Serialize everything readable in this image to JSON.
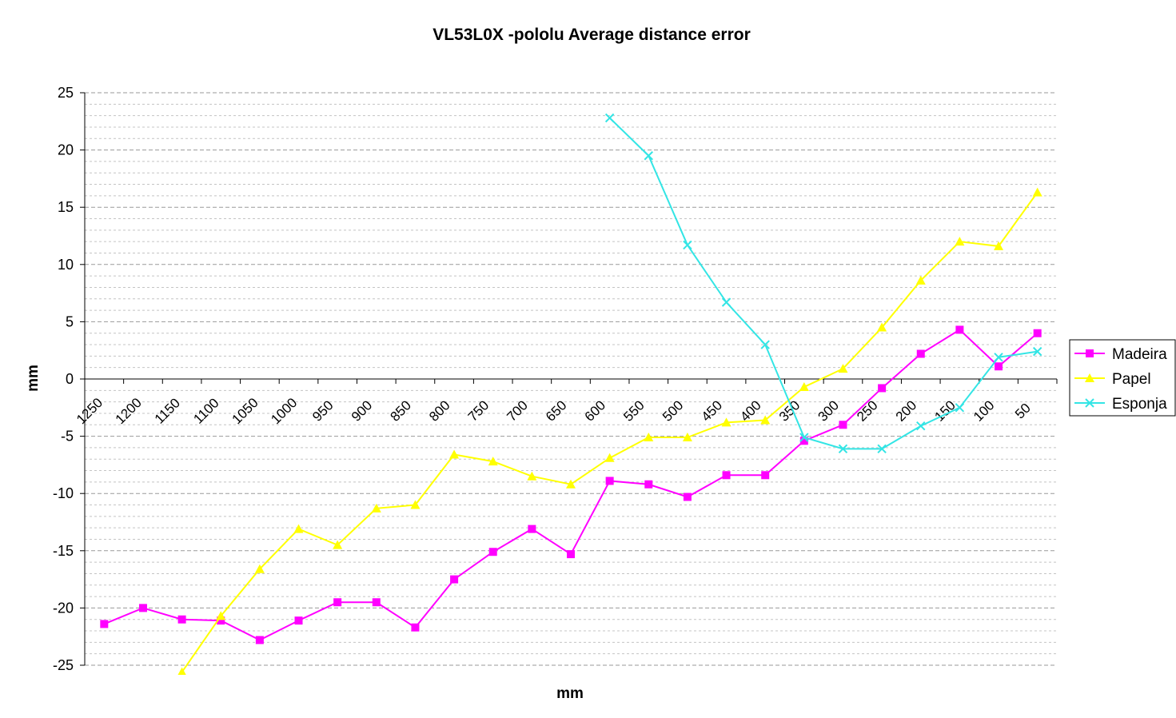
{
  "chart_data": {
    "type": "line",
    "title": "VL53L0X -pololu Average distance error",
    "xlabel": "mm",
    "ylabel": "mm",
    "ylim": [
      -25,
      25
    ],
    "y_ticks": [
      "25",
      "20",
      "15",
      "10",
      "5",
      "0",
      "-5",
      "-10",
      "-15",
      "-20",
      "-25"
    ],
    "y_major_step": 5,
    "y_minor_step": 1,
    "categories": [
      "1250",
      "1200",
      "1150",
      "1100",
      "1050",
      "1000",
      "950",
      "900",
      "850",
      "800",
      "750",
      "700",
      "650",
      "600",
      "550",
      "500",
      "450",
      "400",
      "350",
      "300",
      "250",
      "200",
      "150",
      "100",
      "50"
    ],
    "grid": "horizontal dashed, major and minor",
    "legend_position": "right",
    "series": [
      {
        "name": "Madeira",
        "color": "#ff00ff",
        "marker": "square",
        "values": [
          -21.4,
          -20.0,
          -21.0,
          -21.1,
          -22.8,
          -21.1,
          -19.5,
          -19.5,
          -21.7,
          -17.5,
          -15.1,
          -13.1,
          -15.3,
          -8.9,
          -9.2,
          -10.3,
          -8.4,
          -8.4,
          -5.4,
          -4.0,
          -0.8,
          2.2,
          4.3,
          1.1,
          4.0
        ]
      },
      {
        "name": "Papel",
        "color": "#ffff00",
        "marker": "triangle",
        "values": [
          null,
          null,
          -25.6,
          -20.7,
          -16.6,
          -13.1,
          -14.5,
          -11.3,
          -11.0,
          -6.6,
          -7.2,
          -8.5,
          -9.2,
          -6.9,
          -5.1,
          -5.1,
          -3.8,
          -3.6,
          -0.7,
          0.9,
          4.5,
          8.6,
          12.0,
          11.6,
          16.3
        ]
      },
      {
        "name": "Esponja",
        "color": "#33e5e5",
        "marker": "x",
        "values": [
          null,
          null,
          null,
          null,
          null,
          null,
          null,
          null,
          null,
          null,
          null,
          null,
          null,
          22.8,
          19.5,
          11.7,
          6.7,
          3.0,
          -5.1,
          -6.1,
          -6.1,
          -4.1,
          -2.5,
          1.9,
          2.4
        ]
      }
    ]
  }
}
